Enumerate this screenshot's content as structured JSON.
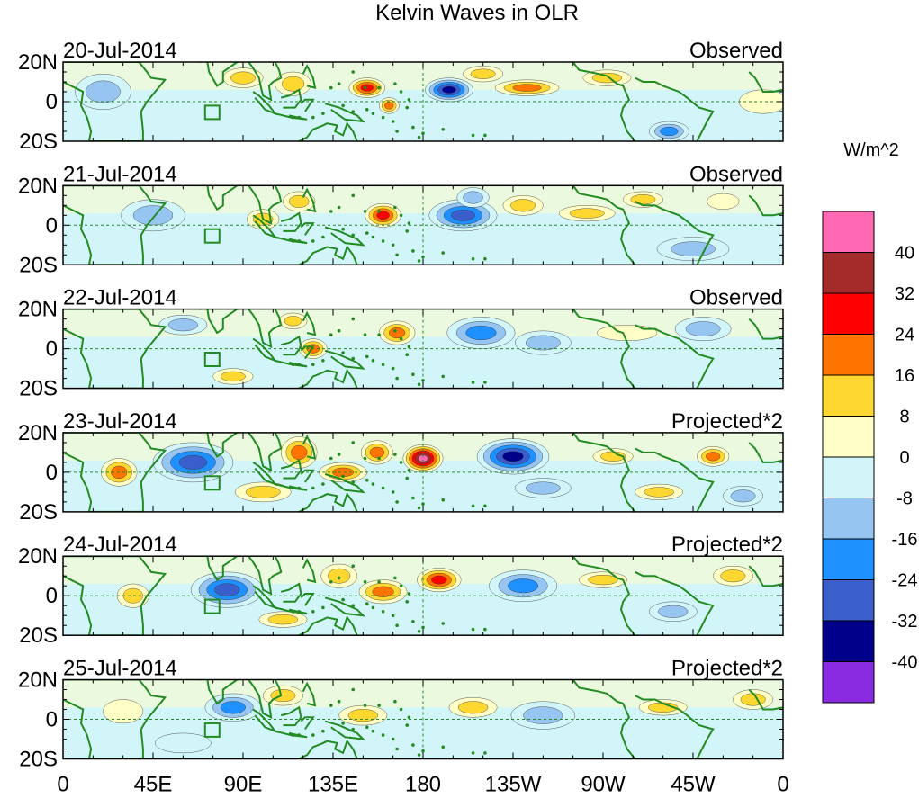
{
  "chart_data": {
    "type": "heatmap",
    "title": "Kelvin Waves in OLR",
    "units_label": "W/m^2",
    "x_tick_labels": [
      "0",
      "45E",
      "90E",
      "135E",
      "180",
      "135W",
      "90W",
      "45W",
      "0"
    ],
    "x_range_deg_east": [
      0,
      360
    ],
    "y_tick_labels": [
      "20N",
      "0",
      "20S"
    ],
    "y_range_deg": [
      -20,
      20
    ],
    "colorbar": {
      "levels": [
        -40,
        -32,
        -24,
        -16,
        -8,
        0,
        8,
        16,
        24,
        32,
        40
      ],
      "tick_labels": [
        "40",
        "32",
        "24",
        "16",
        "8",
        "0",
        "-8",
        "-16",
        "-24",
        "-32",
        "-40"
      ],
      "colors_low_to_high": [
        "#8a2be2",
        "#00008b",
        "#3a5fcd",
        "#1e90ff",
        "#97c5f2",
        "#d2f5fa",
        "#fffec6",
        "#ffd731",
        "#ff7300",
        "#ff0000",
        "#a52a2a",
        "#ff69b4"
      ]
    },
    "panels": [
      {
        "date": "20-Jul-2014",
        "kind": "Observed",
        "anomalies": [
          {
            "lon": 193,
            "lat": 6,
            "value": -38,
            "rx": 12,
            "ry": 6
          },
          {
            "lon": 115,
            "lat": 9,
            "value": 10,
            "rx": 9,
            "ry": 6
          },
          {
            "lon": 152,
            "lat": 7,
            "value": 24,
            "rx": 9,
            "ry": 5
          },
          {
            "lon": 163,
            "lat": -2,
            "value": 18,
            "rx": 5,
            "ry": 4
          },
          {
            "lon": 232,
            "lat": 7,
            "value": 20,
            "rx": 16,
            "ry": 4
          },
          {
            "lon": 210,
            "lat": 14,
            "value": 9,
            "rx": 10,
            "ry": 4
          },
          {
            "lon": 272,
            "lat": 12,
            "value": 9,
            "rx": 12,
            "ry": 4
          },
          {
            "lon": 303,
            "lat": -15,
            "value": -20,
            "rx": 10,
            "ry": 5
          },
          {
            "lon": 20,
            "lat": 5,
            "value": -10,
            "rx": 14,
            "ry": 9
          },
          {
            "lon": 90,
            "lat": 12,
            "value": 8,
            "rx": 10,
            "ry": 5
          },
          {
            "lon": 350,
            "lat": 0,
            "value": 6,
            "rx": 12,
            "ry": 6
          }
        ]
      },
      {
        "date": "21-Jul-2014",
        "kind": "Observed",
        "anomalies": [
          {
            "lon": 160,
            "lat": 5,
            "value": 24,
            "rx": 9,
            "ry": 6
          },
          {
            "lon": 200,
            "lat": 5,
            "value": -25,
            "rx": 17,
            "ry": 8
          },
          {
            "lon": 205,
            "lat": 14,
            "value": -14,
            "rx": 8,
            "ry": 5
          },
          {
            "lon": 262,
            "lat": 6,
            "value": 12,
            "rx": 14,
            "ry": 4
          },
          {
            "lon": 230,
            "lat": 10,
            "value": 9,
            "rx": 10,
            "ry": 5
          },
          {
            "lon": 290,
            "lat": 13,
            "value": 9,
            "rx": 10,
            "ry": 4
          },
          {
            "lon": 330,
            "lat": 12,
            "value": 7,
            "rx": 8,
            "ry": 4
          },
          {
            "lon": 315,
            "lat": -12,
            "value": -10,
            "rx": 18,
            "ry": 6
          },
          {
            "lon": 100,
            "lat": 3,
            "value": 10,
            "rx": 8,
            "ry": 5
          },
          {
            "lon": 45,
            "lat": 5,
            "value": -10,
            "rx": 16,
            "ry": 8
          },
          {
            "lon": 118,
            "lat": 12,
            "value": 8,
            "rx": 8,
            "ry": 5
          }
        ]
      },
      {
        "date": "22-Jul-2014",
        "kind": "Observed",
        "anomalies": [
          {
            "lon": 167,
            "lat": 8,
            "value": 22,
            "rx": 9,
            "ry": 6
          },
          {
            "lon": 209,
            "lat": 8,
            "value": -22,
            "rx": 17,
            "ry": 8
          },
          {
            "lon": 60,
            "lat": 12,
            "value": -14,
            "rx": 12,
            "ry": 5
          },
          {
            "lon": 125,
            "lat": 0,
            "value": 16,
            "rx": 7,
            "ry": 5
          },
          {
            "lon": 115,
            "lat": 14,
            "value": 10,
            "rx": 7,
            "ry": 4
          },
          {
            "lon": 282,
            "lat": 8,
            "value": 6,
            "rx": 15,
            "ry": 4
          },
          {
            "lon": 320,
            "lat": 10,
            "value": -9,
            "rx": 14,
            "ry": 6
          },
          {
            "lon": 85,
            "lat": -14,
            "value": 8,
            "rx": 10,
            "ry": 4
          },
          {
            "lon": 240,
            "lat": 3,
            "value": -9,
            "rx": 14,
            "ry": 6
          }
        ]
      },
      {
        "date": "23-Jul-2014",
        "kind": "Projected*2",
        "anomalies": [
          {
            "lon": 180,
            "lat": 7,
            "value": 40,
            "rx": 10,
            "ry": 7
          },
          {
            "lon": 225,
            "lat": 8,
            "value": -38,
            "rx": 18,
            "ry": 9
          },
          {
            "lon": 65,
            "lat": 5,
            "value": -32,
            "rx": 20,
            "ry": 10
          },
          {
            "lon": 118,
            "lat": 10,
            "value": 20,
            "rx": 9,
            "ry": 8
          },
          {
            "lon": 140,
            "lat": 0,
            "value": 22,
            "rx": 12,
            "ry": 5
          },
          {
            "lon": 157,
            "lat": 10,
            "value": 16,
            "rx": 8,
            "ry": 6
          },
          {
            "lon": 28,
            "lat": 0,
            "value": 18,
            "rx": 9,
            "ry": 7
          },
          {
            "lon": 100,
            "lat": -10,
            "value": 10,
            "rx": 14,
            "ry": 5
          },
          {
            "lon": 275,
            "lat": 8,
            "value": 10,
            "rx": 10,
            "ry": 4
          },
          {
            "lon": 325,
            "lat": 8,
            "value": 16,
            "rx": 8,
            "ry": 5
          },
          {
            "lon": 340,
            "lat": -12,
            "value": -12,
            "rx": 10,
            "ry": 5
          },
          {
            "lon": 298,
            "lat": -10,
            "value": 10,
            "rx": 12,
            "ry": 4
          },
          {
            "lon": 240,
            "lat": -8,
            "value": -10,
            "rx": 14,
            "ry": 5
          }
        ]
      },
      {
        "date": "24-Jul-2014",
        "kind": "Projected*2",
        "anomalies": [
          {
            "lon": 188,
            "lat": 8,
            "value": 26,
            "rx": 11,
            "ry": 6
          },
          {
            "lon": 160,
            "lat": 2,
            "value": 20,
            "rx": 12,
            "ry": 6
          },
          {
            "lon": 138,
            "lat": 10,
            "value": 14,
            "rx": 9,
            "ry": 6
          },
          {
            "lon": 82,
            "lat": 3,
            "value": -30,
            "rx": 18,
            "ry": 9
          },
          {
            "lon": 230,
            "lat": 5,
            "value": -24,
            "rx": 17,
            "ry": 8
          },
          {
            "lon": 270,
            "lat": 8,
            "value": 10,
            "rx": 12,
            "ry": 4
          },
          {
            "lon": 335,
            "lat": 10,
            "value": 12,
            "rx": 10,
            "ry": 5
          },
          {
            "lon": 110,
            "lat": -12,
            "value": 8,
            "rx": 12,
            "ry": 4
          },
          {
            "lon": 35,
            "lat": 0,
            "value": 10,
            "rx": 8,
            "ry": 6
          },
          {
            "lon": 305,
            "lat": -8,
            "value": -10,
            "rx": 12,
            "ry": 5
          }
        ]
      },
      {
        "date": "25-Jul-2014",
        "kind": "Projected*2",
        "anomalies": [
          {
            "lon": 85,
            "lat": 6,
            "value": -20,
            "rx": 14,
            "ry": 7
          },
          {
            "lon": 150,
            "lat": 2,
            "value": 12,
            "rx": 12,
            "ry": 5
          },
          {
            "lon": 205,
            "lat": 6,
            "value": 12,
            "rx": 12,
            "ry": 5
          },
          {
            "lon": 240,
            "lat": 2,
            "value": -12,
            "rx": 16,
            "ry": 7
          },
          {
            "lon": 110,
            "lat": 12,
            "value": 8,
            "rx": 10,
            "ry": 5
          },
          {
            "lon": 300,
            "lat": 6,
            "value": 9,
            "rx": 12,
            "ry": 4
          },
          {
            "lon": 345,
            "lat": 10,
            "value": 8,
            "rx": 10,
            "ry": 5
          },
          {
            "lon": 30,
            "lat": 4,
            "value": 7,
            "rx": 10,
            "ry": 6
          },
          {
            "lon": 60,
            "lat": -12,
            "value": -8,
            "rx": 14,
            "ry": 5
          }
        ]
      }
    ]
  }
}
